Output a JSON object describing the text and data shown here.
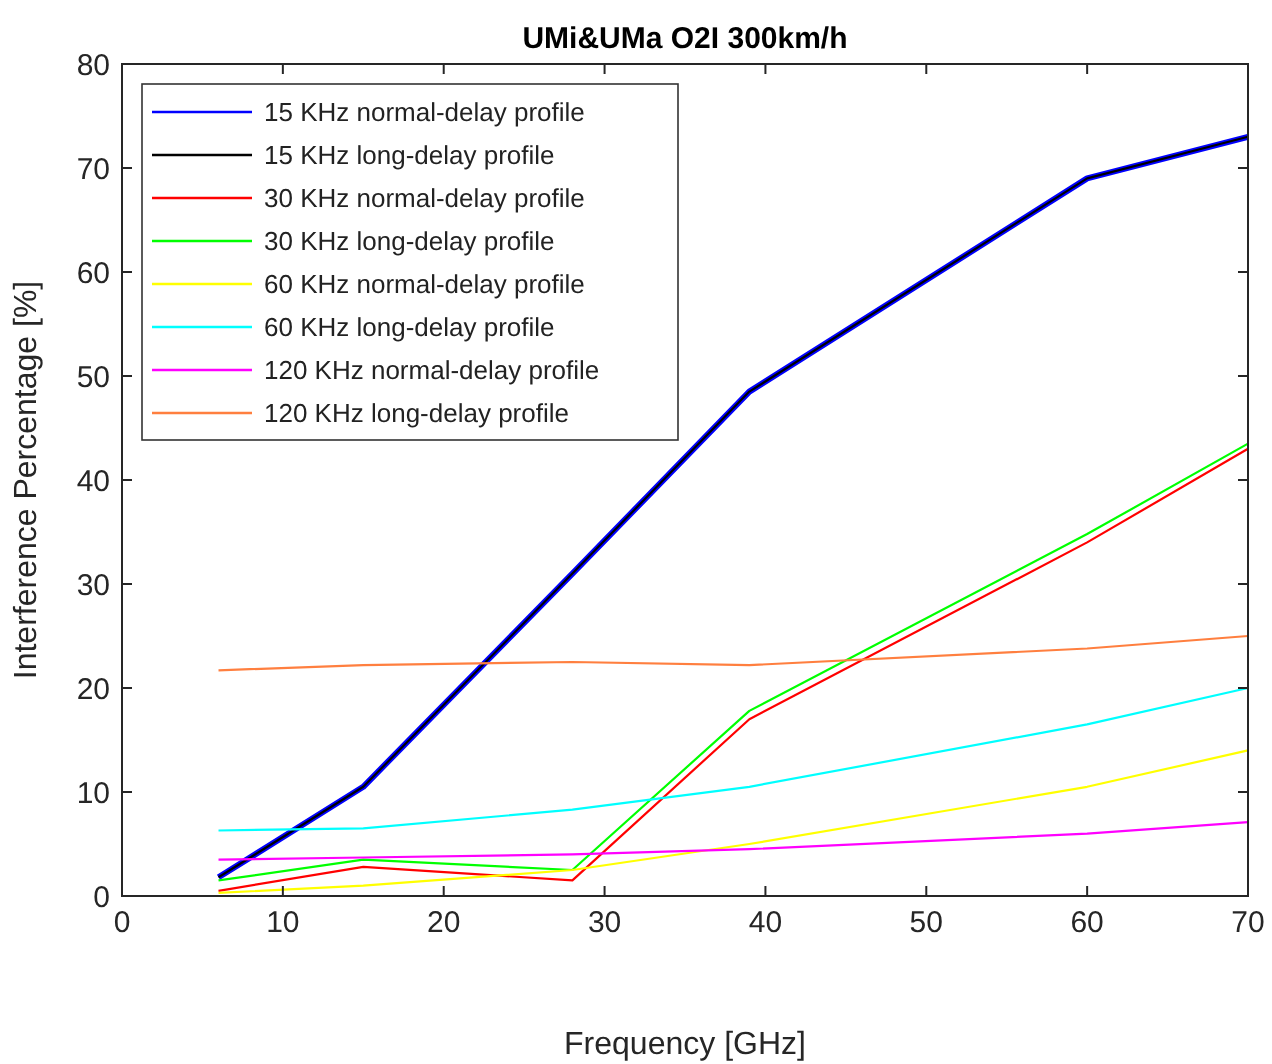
{
  "chart_data": {
    "type": "line",
    "title": "UMi&UMa O2I 300km/h",
    "xlabel": "Frequency [GHz]",
    "ylabel": "Interference Percentage [%]",
    "x": [
      6,
      15,
      28,
      39,
      60,
      70
    ],
    "series": [
      {
        "name": "15 KHz normal-delay profile",
        "color": "#0000ff",
        "values": [
          1.8,
          10.5,
          31,
          48.5,
          69,
          73
        ]
      },
      {
        "name": "15 KHz long-delay profile",
        "color": "#000000",
        "values": [
          1.8,
          10.5,
          31,
          48.5,
          69,
          73
        ]
      },
      {
        "name": "30 KHz normal-delay profile",
        "color": "#ff0000",
        "values": [
          0.5,
          2.8,
          1.5,
          17,
          34,
          43
        ]
      },
      {
        "name": "30 KHz long-delay profile",
        "color": "#00ff00",
        "values": [
          1.5,
          3.5,
          2.5,
          17.8,
          34.8,
          43.5
        ]
      },
      {
        "name": "60 KHz normal-delay profile",
        "color": "#ffff00",
        "values": [
          0.3,
          1,
          2.5,
          5,
          10.5,
          14
        ]
      },
      {
        "name": "60 KHz long-delay profile",
        "color": "#00ffff",
        "values": [
          6.3,
          6.5,
          8.3,
          10.5,
          16.5,
          20
        ]
      },
      {
        "name": "120 KHz normal-delay profile",
        "color": "#ff00ff",
        "values": [
          3.5,
          3.7,
          4,
          4.5,
          6,
          7.1
        ]
      },
      {
        "name": "120 KHz long-delay profile",
        "color": "#ff7f3f",
        "values": [
          21.7,
          22.2,
          22.5,
          22.2,
          23.8,
          25
        ]
      }
    ],
    "xlim": [
      0,
      70
    ],
    "xticks": [
      0,
      10,
      20,
      30,
      40,
      50,
      60,
      70
    ],
    "ylim": [
      0,
      80
    ],
    "yticks": [
      0,
      10,
      20,
      30,
      40,
      50,
      60,
      70,
      80
    ],
    "grid": false,
    "legend": "top left",
    "marker": "none",
    "line_style": "solid"
  }
}
